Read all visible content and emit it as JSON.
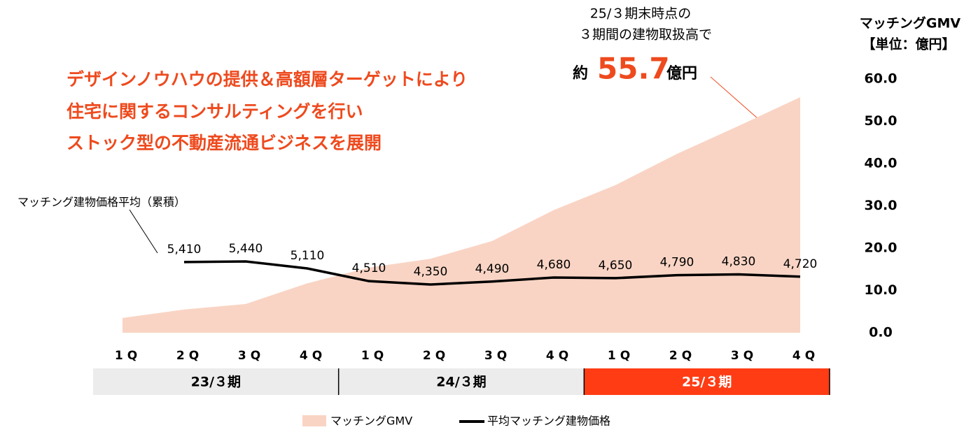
{
  "chart_data": {
    "type": "area-line",
    "headline": [
      "デザインノウハウの提供＆高額層ターゲットにより",
      "住宅に関するコンサルティングを行い",
      "ストック型の不動産流通ビジネスを展開"
    ],
    "callout": {
      "lines": [
        "25/３期末時点の",
        "３期間の建物取扱高で"
      ],
      "prefix": "約",
      "value": "55.7",
      "unit": "億円"
    },
    "y_axis_label": [
      "マッチングGMV",
      "【単位：億円】"
    ],
    "line_annotation": "マッチング建物価格平均（累積）",
    "categories": [
      "1Q",
      "2Q",
      "3Q",
      "4Q",
      "1Q",
      "2Q",
      "3Q",
      "4Q",
      "1Q",
      "2Q",
      "3Q",
      "4Q"
    ],
    "periods": [
      {
        "label": "23/３期",
        "count": 4,
        "color": "#ececec",
        "text_color": "#000000"
      },
      {
        "label": "24/３期",
        "count": 4,
        "color": "#ececec",
        "text_color": "#000000"
      },
      {
        "label": "25/３期",
        "count": 4,
        "color": "#ff3c14",
        "text_color": "#ffffff"
      }
    ],
    "series": [
      {
        "name": "マッチングGMV",
        "color": "#f9d4c4",
        "kind": "area",
        "values": [
          3.5,
          5.5,
          6.8,
          11.7,
          15.4,
          17.5,
          21.7,
          29.0,
          34.9,
          42.3,
          48.9,
          55.7
        ]
      },
      {
        "name": "平均マッチング建物価格",
        "color": "#000000",
        "kind": "line",
        "values": [
          null,
          5410,
          5440,
          5110,
          4510,
          4350,
          4490,
          4680,
          4650,
          4790,
          4830,
          4720
        ],
        "value_labels": [
          null,
          "5,410",
          "5,440",
          "5,110",
          "4,510",
          "4,350",
          "4,490",
          "4,680",
          "4,650",
          "4,790",
          "4,830",
          "4,720"
        ]
      }
    ],
    "ylim": [
      0,
      60
    ],
    "yticks": [
      {
        "value": 0,
        "label": "0.0"
      },
      {
        "value": 10,
        "label": "10.0"
      },
      {
        "value": 20,
        "label": "20.0"
      },
      {
        "value": 30,
        "label": "30.0"
      },
      {
        "value": 40,
        "label": "40.0"
      },
      {
        "value": 50,
        "label": "50.0"
      },
      {
        "value": 60,
        "label": "60.0"
      }
    ]
  }
}
